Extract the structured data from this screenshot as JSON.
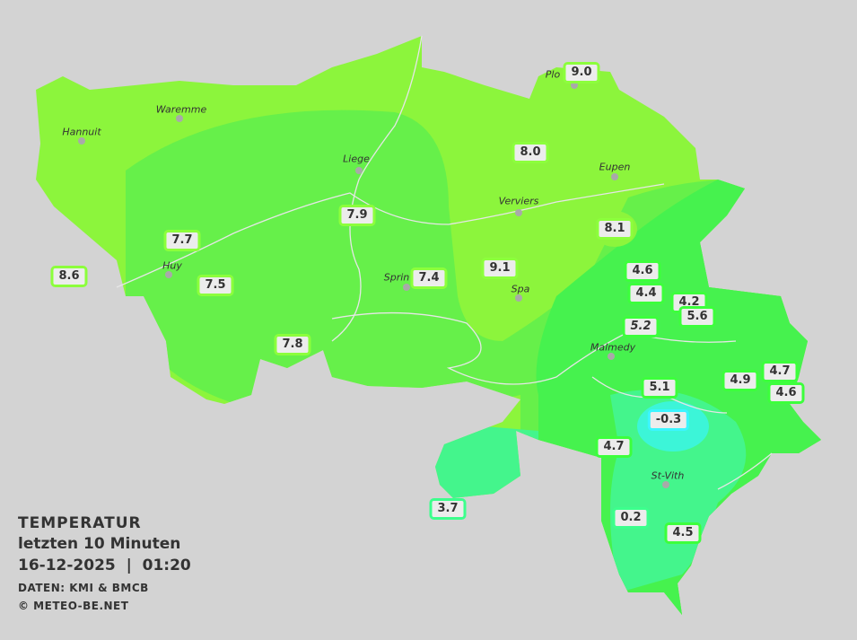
{
  "legend": {
    "title": "TEMPERATUR",
    "subtitle": "letzten 10 Minuten",
    "datetime": "16-12-2025  |  01:20",
    "source": "DATEN: KMI & BMCB",
    "copyright": "© METEO-BE.NET"
  },
  "colors": {
    "background": "#d3d3d3",
    "zone_8_9": "#8cf53c",
    "zone_7": "#66f04a",
    "zone_4_6": "#46f24e",
    "zone_0_3": "#44f58c",
    "zone_below_0": "#3cf5ff"
  },
  "cities": [
    {
      "name": "Hannuit"
    },
    {
      "name": "Waremme"
    },
    {
      "name": "Liege"
    },
    {
      "name": "Verviers"
    },
    {
      "name": "Eupen"
    },
    {
      "name": "Spa"
    },
    {
      "name": "Malmedy"
    },
    {
      "name": "St-Vith"
    },
    {
      "name": "Huy"
    },
    {
      "name": "Sprin"
    },
    {
      "name": "Plo"
    }
  ],
  "stations": [
    {
      "value": "9.0"
    },
    {
      "value": "8.0"
    },
    {
      "value": "8.1"
    },
    {
      "value": "7.9"
    },
    {
      "value": "7.7"
    },
    {
      "value": "8.6"
    },
    {
      "value": "7.5"
    },
    {
      "value": "7.4"
    },
    {
      "value": "9.1"
    },
    {
      "value": "7.8"
    },
    {
      "value": "4.6"
    },
    {
      "value": "4.4"
    },
    {
      "value": "4.2"
    },
    {
      "value": "5.6"
    },
    {
      "value": "5.2"
    },
    {
      "value": "5.1"
    },
    {
      "value": "-0.3"
    },
    {
      "value": "4.9"
    },
    {
      "value": "4.7"
    },
    {
      "value": "4.6"
    },
    {
      "value": "4.7"
    },
    {
      "value": "3.7"
    },
    {
      "value": "0.2"
    },
    {
      "value": "4.5"
    }
  ]
}
